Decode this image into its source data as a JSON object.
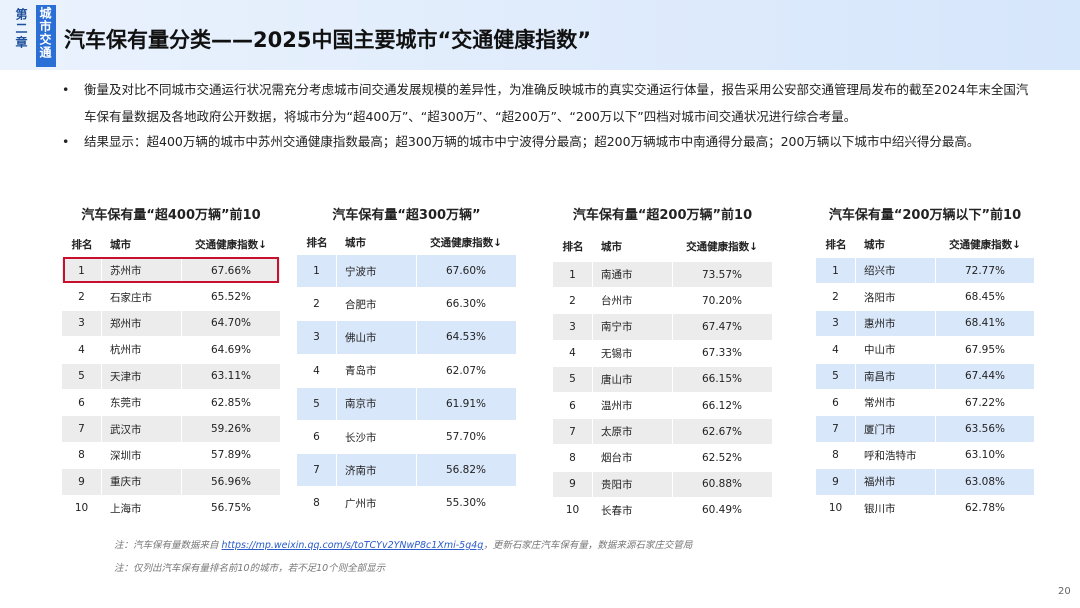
{
  "header": {
    "chapter": "第二章",
    "section": "城市交通",
    "title": "汽车保有量分类——2025中国主要城市“交通健康指数”"
  },
  "bullets": [
    "衡量及对比不同城市交通运行状况需充分考虑城市间交通发展规模的差异性，为准确反映城市的真实交通运行体量，报告采用公安部交通管理局发布的截至2024年末全国汽车保有量数据及各地政府公开数据，将城市分为“超400万”、“超300万”、“超200万”、“200万以下”四档对城市间交通状况进行综合考量。",
    "结果显示：超400万辆的城市中苏州交通健康指数最高；超300万辆的城市中宁波得分最高；超200万辆城市中南通得分最高；200万辆以下城市中绍兴得分最高。"
  ],
  "tables": [
    {
      "title": "汽车保有量“超400万辆”前10",
      "headers": [
        "排名",
        "城市",
        "交通健康指数↓"
      ],
      "rows": [
        [
          "1",
          "苏州市",
          "67.66%"
        ],
        [
          "2",
          "石家庄市",
          "65.52%"
        ],
        [
          "3",
          "郑州市",
          "64.70%"
        ],
        [
          "4",
          "杭州市",
          "64.69%"
        ],
        [
          "5",
          "天津市",
          "63.11%"
        ],
        [
          "6",
          "东莞市",
          "62.85%"
        ],
        [
          "7",
          "武汉市",
          "59.26%"
        ],
        [
          "8",
          "深圳市",
          "57.89%"
        ],
        [
          "9",
          "重庆市",
          "56.96%"
        ],
        [
          "10",
          "上海市",
          "56.75%"
        ]
      ]
    },
    {
      "title": "汽车保有量“超300万辆”",
      "headers": [
        "排名",
        "城市",
        "交通健康指数↓"
      ],
      "rows": [
        [
          "1",
          "宁波市",
          "67.60%"
        ],
        [
          "2",
          "合肥市",
          "66.30%"
        ],
        [
          "3",
          "佛山市",
          "64.53%"
        ],
        [
          "4",
          "青岛市",
          "62.07%"
        ],
        [
          "5",
          "南京市",
          "61.91%"
        ],
        [
          "6",
          "长沙市",
          "57.70%"
        ],
        [
          "7",
          "济南市",
          "56.82%"
        ],
        [
          "8",
          "广州市",
          "55.30%"
        ]
      ]
    },
    {
      "title": "汽车保有量“超200万辆”前10",
      "headers": [
        "排名",
        "城市",
        "交通健康指数↓"
      ],
      "rows": [
        [
          "1",
          "南通市",
          "73.57%"
        ],
        [
          "2",
          "台州市",
          "70.20%"
        ],
        [
          "3",
          "南宁市",
          "67.47%"
        ],
        [
          "4",
          "无锡市",
          "67.33%"
        ],
        [
          "5",
          "唐山市",
          "66.15%"
        ],
        [
          "6",
          "温州市",
          "66.12%"
        ],
        [
          "7",
          "太原市",
          "62.67%"
        ],
        [
          "8",
          "烟台市",
          "62.52%"
        ],
        [
          "9",
          "贵阳市",
          "60.88%"
        ],
        [
          "10",
          "长春市",
          "60.49%"
        ]
      ]
    },
    {
      "title": "汽车保有量“200万辆以下”前10",
      "headers": [
        "排名",
        "城市",
        "交通健康指数↓"
      ],
      "rows": [
        [
          "1",
          "绍兴市",
          "72.77%"
        ],
        [
          "2",
          "洛阳市",
          "68.45%"
        ],
        [
          "3",
          "惠州市",
          "68.41%"
        ],
        [
          "4",
          "中山市",
          "67.95%"
        ],
        [
          "5",
          "南昌市",
          "67.44%"
        ],
        [
          "6",
          "常州市",
          "67.22%"
        ],
        [
          "7",
          "厦门市",
          "63.56%"
        ],
        [
          "8",
          "呼和浩特市",
          "63.10%"
        ],
        [
          "9",
          "福州市",
          "63.08%"
        ],
        [
          "10",
          "银川市",
          "62.78%"
        ]
      ]
    }
  ],
  "notes": [
    {
      "prefix": "注：汽车保有量数据来自 ",
      "link": "https://mp.weixin.qq.com/s/toTCYv2YNwP8c1Xmi-5g4g",
      "suffix": "，更新石家庄汽车保有量，数据来源石家庄交管局"
    },
    {
      "text": "注：仅列出汽车保有量排名前10的城市，若不足10个则全部显示"
    }
  ],
  "page_number": "20"
}
